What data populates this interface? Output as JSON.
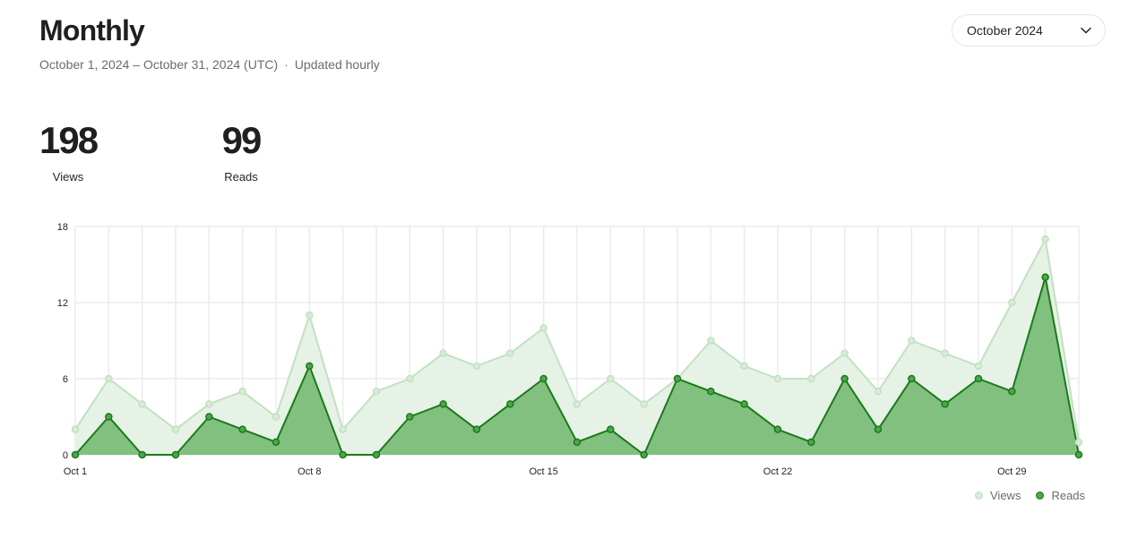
{
  "header": {
    "title": "Monthly",
    "date_range": "October 1, 2024 – October 31, 2024 (UTC)",
    "separator": "·",
    "update_note": "Updated hourly"
  },
  "month_select": {
    "value": "October 2024",
    "icon": "chevron-down-icon"
  },
  "stats": {
    "views": {
      "value": "198",
      "label": "Views"
    },
    "reads": {
      "value": "99",
      "label": "Reads"
    }
  },
  "colors": {
    "views_line": "#c1e1c1",
    "views_fill": "#e6f2e6",
    "views_marker": "#d8ecd8",
    "reads_line": "#1a7a1a",
    "reads_fill": "#81c07f",
    "reads_marker": "#4ca64c",
    "grid": "#ebebeb",
    "tick_text": "#242424"
  },
  "chart_data": {
    "type": "area",
    "x": [
      1,
      2,
      3,
      4,
      5,
      6,
      7,
      8,
      9,
      10,
      11,
      12,
      13,
      14,
      15,
      16,
      17,
      18,
      19,
      20,
      21,
      22,
      23,
      24,
      25,
      26,
      27,
      28,
      29,
      30,
      31
    ],
    "x_tick_values": [
      1,
      8,
      15,
      22,
      29
    ],
    "x_tick_labels": [
      "Oct 1",
      "Oct 8",
      "Oct 15",
      "Oct 22",
      "Oct 29"
    ],
    "y_ticks": [
      0,
      6,
      12,
      18
    ],
    "ylim": [
      0,
      18
    ],
    "grid": true,
    "legend": "bottom-right",
    "series": [
      {
        "name": "Views",
        "values": [
          2,
          6,
          4,
          2,
          4,
          5,
          3,
          11,
          2,
          5,
          6,
          8,
          7,
          8,
          10,
          4,
          6,
          4,
          6,
          9,
          7,
          6,
          6,
          8,
          5,
          9,
          8,
          7,
          12,
          17,
          1
        ]
      },
      {
        "name": "Reads",
        "values": [
          0,
          3,
          0,
          0,
          3,
          2,
          1,
          7,
          0,
          0,
          3,
          4,
          2,
          4,
          6,
          1,
          2,
          0,
          6,
          5,
          4,
          2,
          1,
          6,
          2,
          6,
          4,
          6,
          5,
          14,
          0
        ]
      }
    ]
  }
}
